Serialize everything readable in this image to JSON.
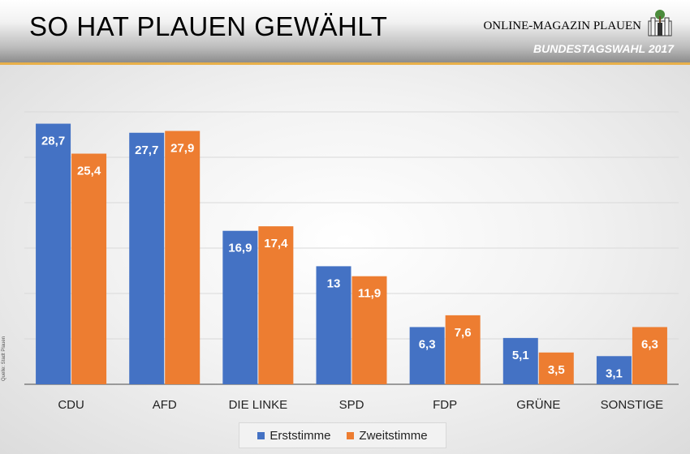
{
  "header": {
    "title": "SO HAT PLAUEN GEWÄHLT",
    "magazine": "ONLINE-MAGAZIN PLAUEN",
    "subtitle": "BUNDESTAGSWAHL 2017",
    "logo_icon": "plauen-coat-of-arms-icon"
  },
  "source_note": "Quelle: Stadt Plauen",
  "colors": {
    "erststimme": "#4472c4",
    "zweitstimme": "#ed7d31",
    "accent": "#e8b04a",
    "gridline": "#d9d9d9",
    "axis": "#7f7f7f"
  },
  "chart_data": {
    "type": "bar",
    "categories": [
      "CDU",
      "AFD",
      "DIE LINKE",
      "SPD",
      "FDP",
      "GRÜNE",
      "SONSTIGE"
    ],
    "series": [
      {
        "name": "Erststimme",
        "values": [
          28.7,
          27.7,
          16.9,
          13,
          6.3,
          5.1,
          3.1
        ],
        "labels": [
          "28,7",
          "27,7",
          "16,9",
          "13",
          "6,3",
          "5,1",
          "3,1"
        ]
      },
      {
        "name": "Zweitstimme",
        "values": [
          25.4,
          27.9,
          17.4,
          11.9,
          7.6,
          3.5,
          6.3
        ],
        "labels": [
          "25,4",
          "27,9",
          "17,4",
          "11,9",
          "7,6",
          "3,5",
          "6,3"
        ]
      }
    ],
    "ylim": [
      0,
      30
    ],
    "grid": true,
    "legend": "bottom"
  }
}
